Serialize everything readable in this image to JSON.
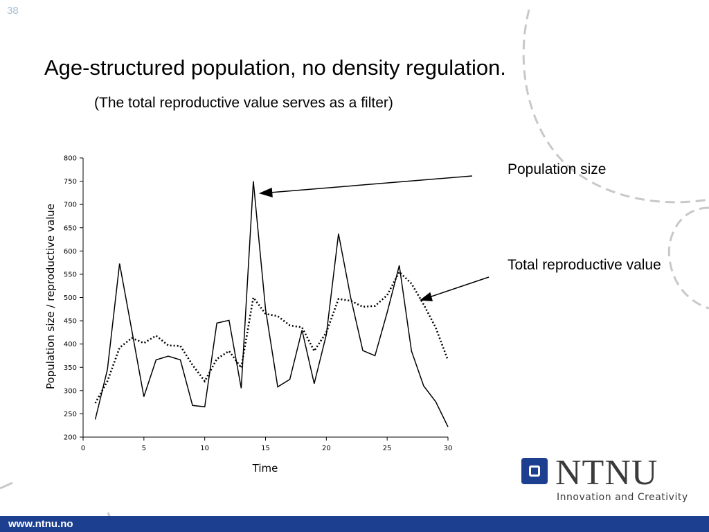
{
  "slide": {
    "number": "38",
    "title": "Age-structured population, no density regulation.",
    "subtitle": "(The total reproductive value serves as a filter)"
  },
  "annotations": {
    "population_size": "Population size",
    "total_reproductive_value": "Total reproductive value"
  },
  "logo": {
    "name": "NTNU",
    "tagline": "Innovation and Creativity"
  },
  "footer": {
    "url": "www.ntnu.no"
  },
  "colors": {
    "brand_blue": "#1d3f8f",
    "deco_gray": "#c8c8c8",
    "slide_number": "#a8bfd3"
  },
  "chart_data": {
    "type": "line",
    "xlabel": "Time",
    "ylabel": "Population size / reproductive value",
    "xlim": [
      0,
      30
    ],
    "ylim": [
      200,
      800
    ],
    "x_ticks": [
      0,
      5,
      10,
      15,
      20,
      25,
      30
    ],
    "y_ticks": [
      200,
      250,
      300,
      350,
      400,
      450,
      500,
      550,
      600,
      650,
      700,
      750,
      800
    ],
    "grid": false,
    "series": [
      {
        "name": "Population size",
        "style": "solid",
        "x": [
          1,
          2,
          3,
          4,
          5,
          6,
          7,
          8,
          9,
          10,
          11,
          12,
          13,
          14,
          15,
          16,
          17,
          18,
          19,
          20,
          21,
          22,
          23,
          24,
          25,
          26,
          27,
          28,
          29,
          30
        ],
        "values": [
          238,
          345,
          573,
          430,
          287,
          366,
          374,
          366,
          268,
          265,
          445,
          451,
          305,
          750,
          475,
          308,
          324,
          430,
          315,
          420,
          637,
          500,
          386,
          375,
          468,
          569,
          385,
          310,
          276,
          222
        ]
      },
      {
        "name": "Total reproductive value",
        "style": "dotted",
        "x": [
          1,
          2,
          3,
          4,
          5,
          6,
          7,
          8,
          9,
          10,
          11,
          12,
          13,
          14,
          15,
          16,
          17,
          18,
          19,
          20,
          21,
          22,
          23,
          24,
          25,
          26,
          27,
          28,
          29,
          30
        ],
        "values": [
          273,
          320,
          392,
          413,
          402,
          418,
          397,
          396,
          355,
          320,
          368,
          385,
          349,
          500,
          465,
          460,
          440,
          436,
          385,
          425,
          497,
          493,
          480,
          482,
          505,
          555,
          530,
          485,
          435,
          365
        ]
      }
    ]
  }
}
